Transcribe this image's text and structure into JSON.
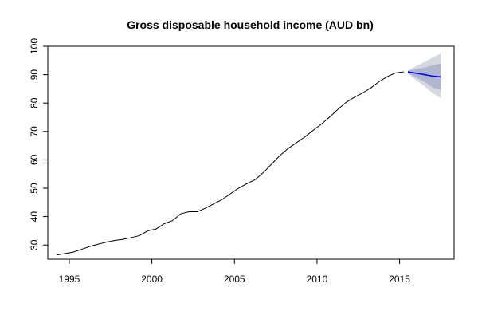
{
  "chart_data": {
    "type": "line",
    "title": "Gross disposable household income (AUD bn)",
    "xlabel": "",
    "ylabel": "",
    "xlim": [
      1993.7,
      2018.3
    ],
    "ylim": [
      25,
      100
    ],
    "x_ticks": [
      "1995",
      "2000",
      "2005",
      "2010",
      "2015"
    ],
    "y_ticks": [
      "30",
      "40",
      "50",
      "60",
      "70",
      "80",
      "90",
      "100"
    ],
    "grid": false,
    "colors": {
      "history_line": "#000000",
      "forecast_line": "#0000ff",
      "band_80": "#b1b6cf",
      "band_95": "#d6d8df"
    },
    "series": [
      {
        "values": [
          [
            1994.25,
            26.5
          ],
          [
            1994.75,
            27.0
          ],
          [
            1995.25,
            27.5
          ],
          [
            1995.75,
            28.5
          ],
          [
            1996.25,
            29.5
          ],
          [
            1996.75,
            30.3
          ],
          [
            1997.25,
            31.0
          ],
          [
            1997.75,
            31.6
          ],
          [
            1998.25,
            32.0
          ],
          [
            1998.75,
            32.6
          ],
          [
            1999.25,
            33.3
          ],
          [
            1999.75,
            35.0
          ],
          [
            2000.25,
            35.6
          ],
          [
            2000.75,
            37.5
          ],
          [
            2001.25,
            38.6
          ],
          [
            2001.75,
            41.0
          ],
          [
            2002.25,
            41.7
          ],
          [
            2002.75,
            41.7
          ],
          [
            2003.25,
            43.0
          ],
          [
            2003.75,
            44.5
          ],
          [
            2004.25,
            46.0
          ],
          [
            2004.75,
            48.0
          ],
          [
            2005.25,
            50.0
          ],
          [
            2005.75,
            51.6
          ],
          [
            2006.25,
            53.0
          ],
          [
            2006.75,
            55.5
          ],
          [
            2007.25,
            58.5
          ],
          [
            2007.75,
            61.5
          ],
          [
            2008.25,
            64.0
          ],
          [
            2008.75,
            66.0
          ],
          [
            2009.25,
            68.0
          ],
          [
            2009.75,
            70.3
          ],
          [
            2010.25,
            72.5
          ],
          [
            2010.75,
            75.0
          ],
          [
            2011.25,
            77.7
          ],
          [
            2011.75,
            80.2
          ],
          [
            2012.25,
            82.0
          ],
          [
            2012.75,
            83.5
          ],
          [
            2013.25,
            85.3
          ],
          [
            2013.75,
            87.5
          ],
          [
            2014.25,
            89.3
          ],
          [
            2014.75,
            90.6
          ],
          [
            2015.25,
            91.0
          ]
        ]
      },
      {
        "values": [
          [
            2015.5,
            91.0
          ],
          [
            2016.0,
            90.5
          ],
          [
            2016.5,
            90.0
          ],
          [
            2017.0,
            89.5
          ],
          [
            2017.5,
            89.2
          ]
        ],
        "band_80": [
          [
            2015.5,
            90.7,
            91.3
          ],
          [
            2016.0,
            89.0,
            92.0
          ],
          [
            2016.5,
            87.5,
            92.5
          ],
          [
            2017.0,
            85.5,
            93.3
          ],
          [
            2017.5,
            84.5,
            94.0
          ]
        ],
        "band_95": [
          [
            2015.5,
            90.5,
            91.5
          ],
          [
            2016.0,
            88.0,
            93.0
          ],
          [
            2016.5,
            86.0,
            94.5
          ],
          [
            2017.0,
            83.5,
            96.0
          ],
          [
            2017.5,
            81.7,
            97.5
          ]
        ]
      }
    ]
  }
}
